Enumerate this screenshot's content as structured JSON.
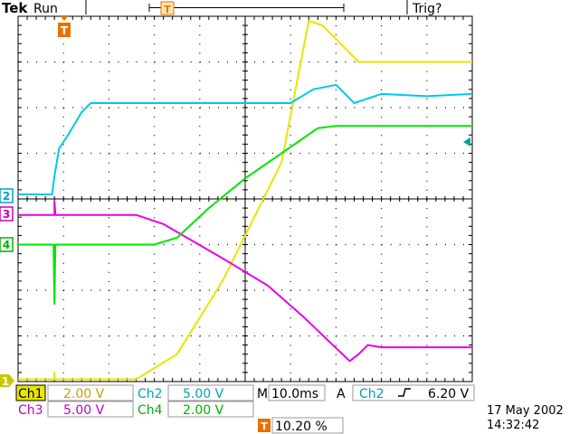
{
  "header": {
    "brand": "Tek",
    "status": "Run",
    "trigger_state": "Trig?"
  },
  "markers": {
    "trigger_position": "T",
    "ch1": "1",
    "ch2": "2",
    "ch3": "3",
    "ch4": "4"
  },
  "readouts": {
    "ch1_label": "Ch1",
    "ch1_scale": "2.00 V",
    "ch2_label": "Ch2",
    "ch2_scale": "5.00 V",
    "ch3_label": "Ch3",
    "ch3_scale": "5.00 V",
    "ch4_label": "Ch4",
    "ch4_scale": "2.00 V",
    "timebase_label": "M",
    "timebase_value": "10.0ms",
    "trigger_mode": "A",
    "trigger_source": "Ch2",
    "trigger_slope": "rising",
    "trigger_level": "6.20 V",
    "trigger_pos_icon": "T",
    "trigger_pos_value": "10.20 %",
    "date": "17 May 2002",
    "time": "14:32:42"
  },
  "colors": {
    "ch1": "#e6e600",
    "ch2": "#00c8e6",
    "ch3": "#e600e6",
    "ch4": "#00e600",
    "trigger": "#e67300",
    "grid": "#000000"
  },
  "chart_data": {
    "type": "line",
    "x_unit": "division",
    "y_unit": "division",
    "xlim": [
      0,
      10
    ],
    "ylim": [
      -4,
      4
    ],
    "divisions": {
      "x": 10,
      "y": 8
    },
    "series": [
      {
        "name": "Ch1",
        "color": "#e6e600",
        "x": [
          0,
          0.8,
          0.8,
          0.8,
          2.6,
          3.5,
          4.5,
          5.8,
          6.4,
          6.7,
          7.5,
          10
        ],
        "y": [
          -3.95,
          -3.95,
          -3.8,
          -3.95,
          -3.95,
          -3.4,
          -1.8,
          0.8,
          3.9,
          3.8,
          3.0,
          3.0
        ]
      },
      {
        "name": "Ch2",
        "color": "#00c8e6",
        "x": [
          0,
          0.75,
          0.8,
          0.9,
          1.1,
          1.4,
          1.6,
          1.8,
          3,
          4,
          5,
          6,
          6.5,
          7,
          7.4,
          8,
          9,
          10
        ],
        "y": [
          0.1,
          0.1,
          0.5,
          1.1,
          1.4,
          1.9,
          2.1,
          2.1,
          2.1,
          2.1,
          2.1,
          2.1,
          2.4,
          2.5,
          2.1,
          2.3,
          2.25,
          2.3
        ]
      },
      {
        "name": "Ch3",
        "color": "#e600e6",
        "x": [
          0,
          0.8,
          0.8,
          0.82,
          2.6,
          3.2,
          4.5,
          5.5,
          6.3,
          7.3,
          7.5,
          7.7,
          8,
          10
        ],
        "y": [
          -0.35,
          -0.35,
          -0.05,
          -0.35,
          -0.35,
          -0.55,
          -1.3,
          -1.9,
          -2.6,
          -3.55,
          -3.4,
          -3.2,
          -3.25,
          -3.25
        ]
      },
      {
        "name": "Ch4",
        "color": "#00e600",
        "x": [
          0,
          0.78,
          0.8,
          0.82,
          0.84,
          3.0,
          3.5,
          4.2,
          5.0,
          5.8,
          6.6,
          7.0,
          10
        ],
        "y": [
          -1.0,
          -1.0,
          -2.3,
          -1.0,
          -1.0,
          -1.0,
          -0.85,
          -0.2,
          0.45,
          1.0,
          1.55,
          1.6,
          1.6
        ]
      }
    ]
  }
}
